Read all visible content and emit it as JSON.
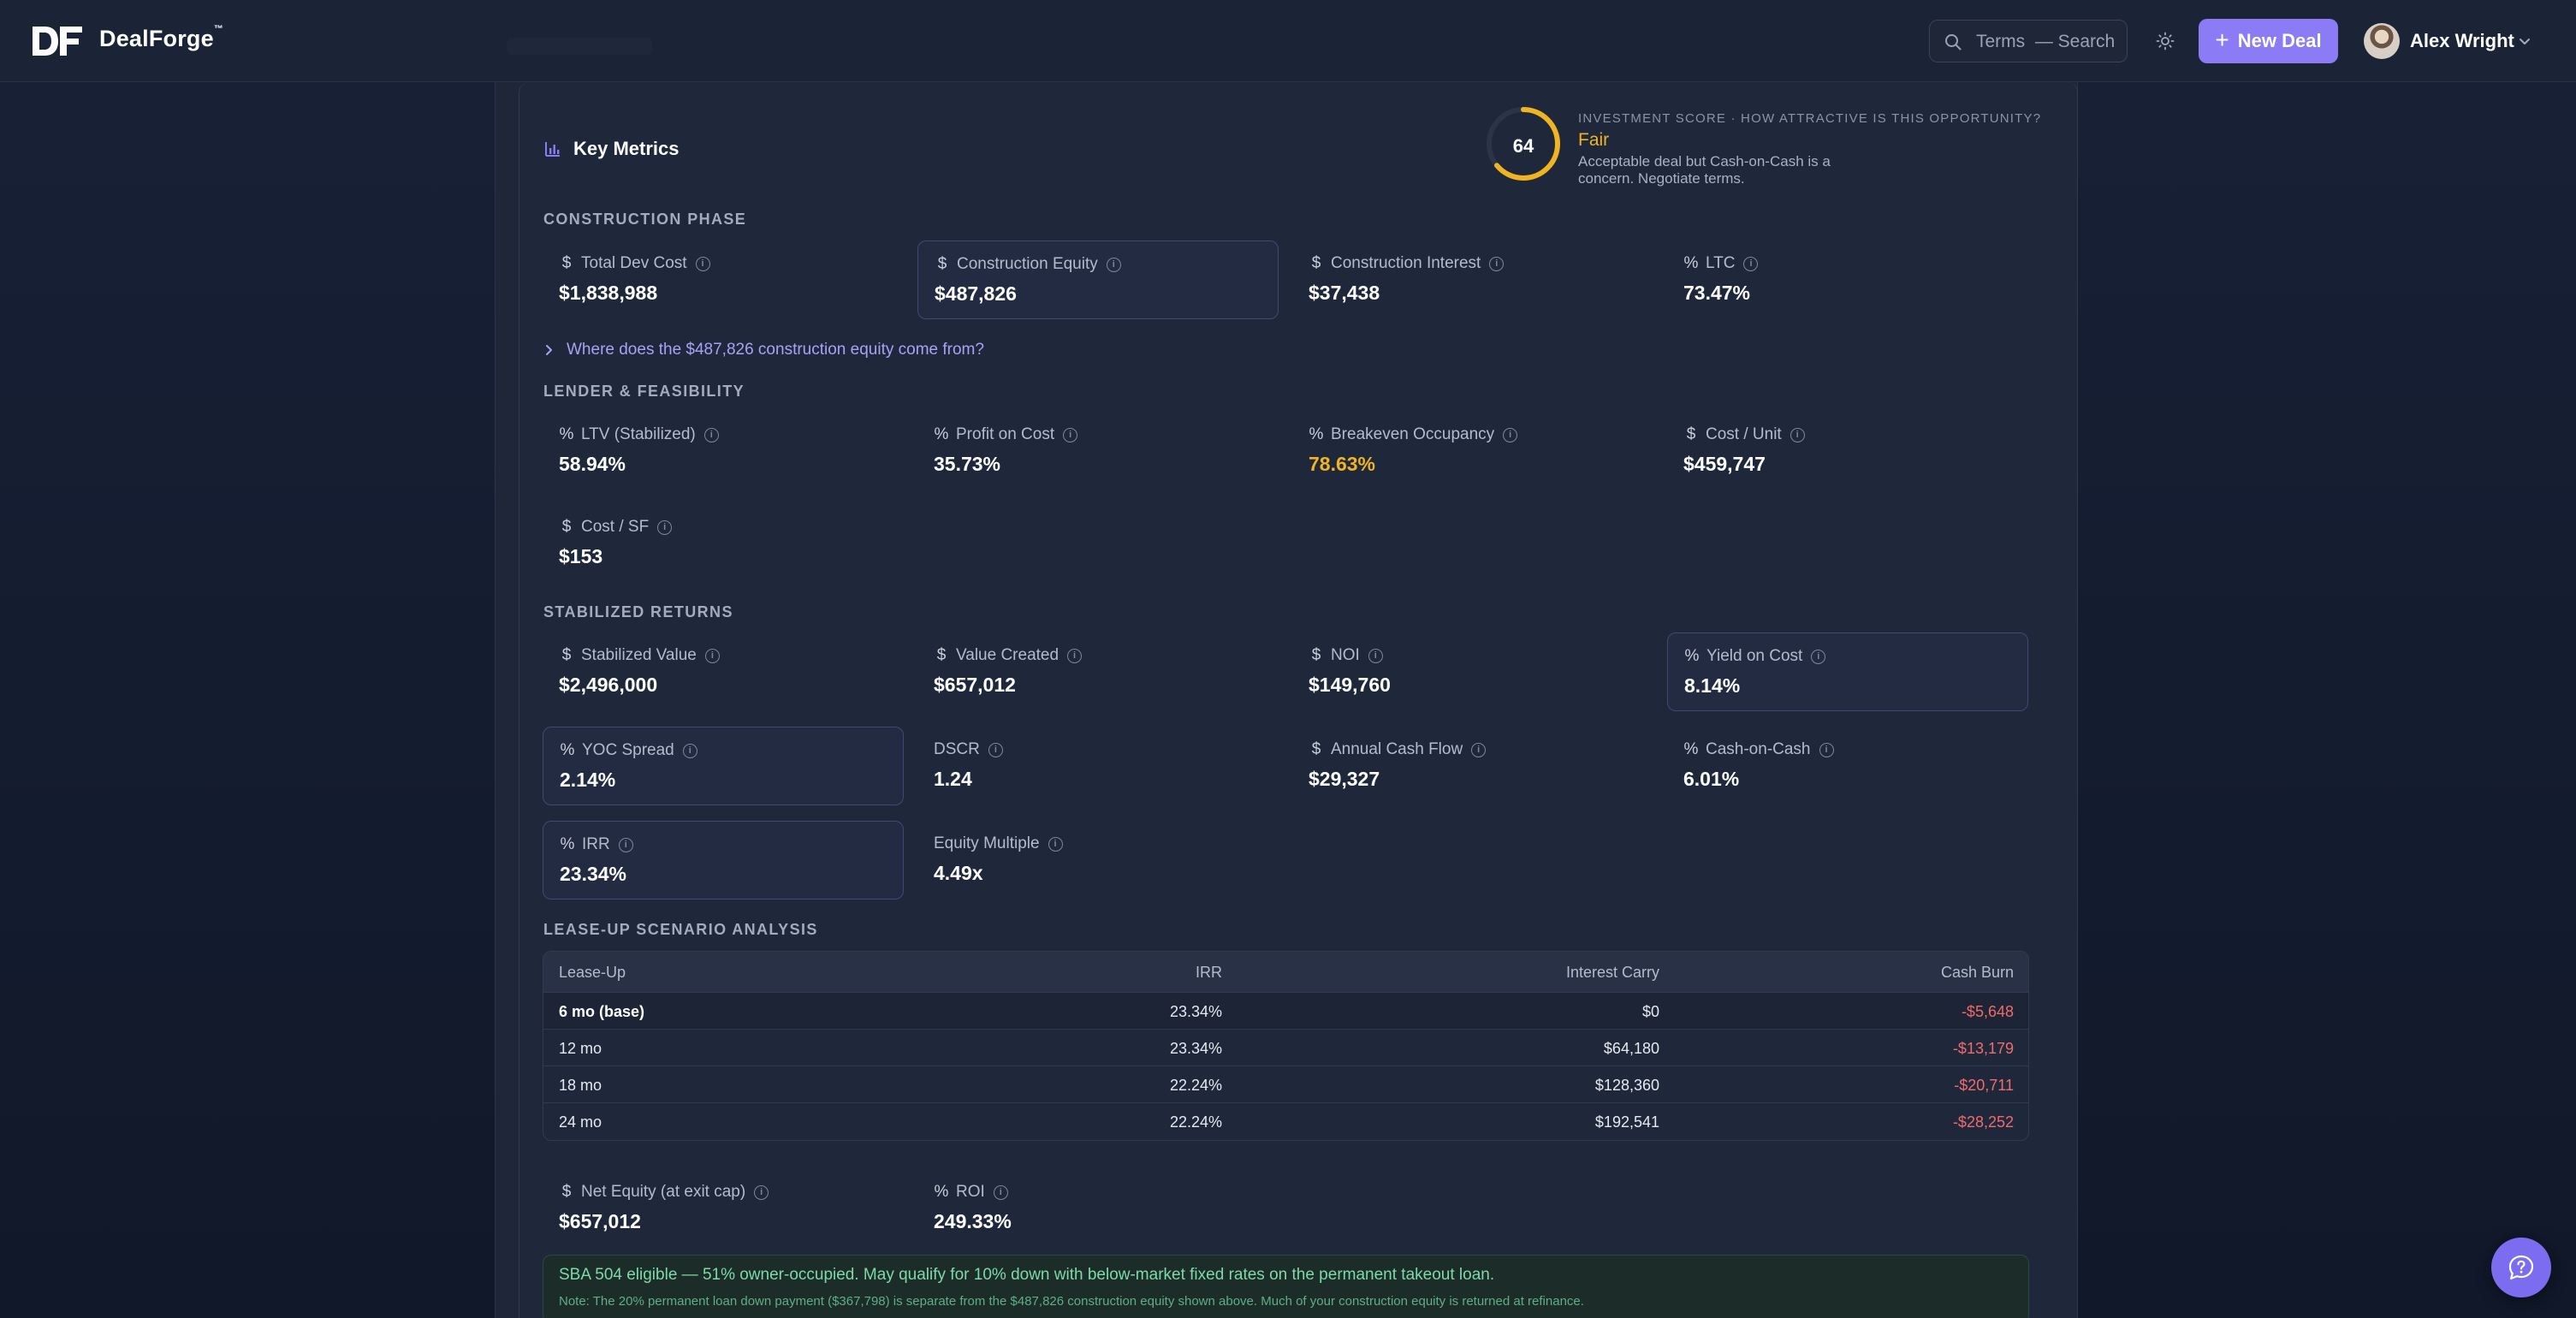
{
  "app": {
    "name": "DealForge",
    "trademark": "™"
  },
  "header": {
    "search_label": "Terms",
    "search_hint": "— Search",
    "new_deal_label": "New Deal",
    "user_name": "Alex Wright"
  },
  "key_metrics": {
    "title": "Key Metrics"
  },
  "score": {
    "value": "64",
    "fraction": 0.64,
    "label": "INVESTMENT SCORE · HOW ATTRACTIVE IS THIS OPPORTUNITY?",
    "grade": "Fair",
    "description": "Acceptable deal but Cash-on-Cash is a concern. Negotiate terms.",
    "color": "#f0b322"
  },
  "construction": {
    "label": "CONSTRUCTION PHASE",
    "items": [
      {
        "icon": "$",
        "label": "Total Dev Cost",
        "value": "$1,838,988"
      },
      {
        "icon": "$",
        "label": "Construction Equity",
        "value": "$487,826"
      },
      {
        "icon": "$",
        "label": "Construction Interest",
        "value": "$37,438"
      },
      {
        "icon": "%",
        "label": "LTC",
        "value": "73.47%"
      }
    ],
    "equity_link": "Where does the $487,826 construction equity come from?"
  },
  "lender": {
    "label": "LENDER & FEASIBILITY",
    "items": [
      {
        "icon": "%",
        "label": "LTV (Stabilized)",
        "value": "58.94%"
      },
      {
        "icon": "%",
        "label": "Profit on Cost",
        "value": "35.73%"
      },
      {
        "icon": "%",
        "label": "Breakeven Occupancy",
        "value": "78.63%"
      },
      {
        "icon": "$",
        "label": "Cost / Unit",
        "value": "$459,747"
      },
      {
        "icon": "$",
        "label": "Cost / SF",
        "value": "$153"
      }
    ]
  },
  "stabilized": {
    "label": "STABILIZED RETURNS",
    "items": [
      {
        "icon": "$",
        "label": "Stabilized Value",
        "value": "$2,496,000"
      },
      {
        "icon": "$",
        "label": "Value Created",
        "value": "$657,012"
      },
      {
        "icon": "$",
        "label": "NOI",
        "value": "$149,760"
      },
      {
        "icon": "%",
        "label": "Yield on Cost",
        "value": "8.14%"
      },
      {
        "icon": "%",
        "label": "YOC Spread",
        "value": "2.14%"
      },
      {
        "icon": "",
        "label": "DSCR",
        "value": "1.24"
      },
      {
        "icon": "$",
        "label": "Annual Cash Flow",
        "value": "$29,327"
      },
      {
        "icon": "%",
        "label": "Cash-on-Cash",
        "value": "6.01%"
      },
      {
        "icon": "%",
        "label": "IRR",
        "value": "23.34%"
      },
      {
        "icon": "",
        "label": "Equity Multiple",
        "value": "4.49x"
      }
    ]
  },
  "lease_up": {
    "label": "LEASE-UP SCENARIO ANALYSIS",
    "columns": [
      "Lease-Up",
      "IRR",
      "Interest Carry",
      "Cash Burn"
    ],
    "rows": [
      [
        "6 mo (base)",
        "23.34%",
        "$0",
        "-$5,648"
      ],
      [
        "12 mo",
        "23.34%",
        "$64,180",
        "-$13,179"
      ],
      [
        "18 mo",
        "22.24%",
        "$128,360",
        "-$20,711"
      ],
      [
        "24 mo",
        "22.24%",
        "$192,541",
        "-$28,252"
      ]
    ]
  },
  "exit": {
    "items": [
      {
        "icon": "$",
        "label": "Net Equity (at exit cap)",
        "value": "$657,012"
      },
      {
        "icon": "%",
        "label": "ROI",
        "value": "249.33%"
      }
    ]
  },
  "sba": {
    "main": "SBA 504 eligible — 51% owner-occupied. May qualify for 10% down with below-market fixed rates on the permanent takeout loan.",
    "note": "Note: The 20% permanent loan down payment ($367,798) is separate from the $487,826 construction equity shown above. Much of your construction equity is returned at refinance."
  },
  "colors": {
    "accent": "#8b7cf6",
    "warning": "#f0b322",
    "negative": "#f06b6b",
    "success": "#7dd9a8"
  }
}
